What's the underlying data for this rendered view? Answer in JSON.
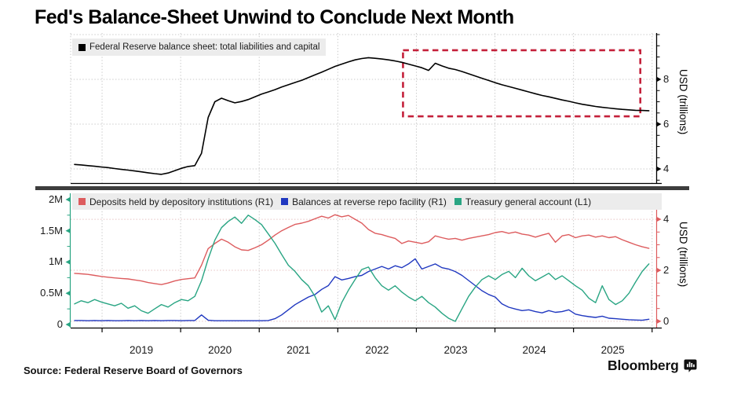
{
  "title": "Fed's Balance-Sheet Unwind to Conclude Next Month",
  "source": "Source: Federal Reserve Board of Governors",
  "brand": {
    "name": "Bloomberg",
    "icon": "bloomberg-terminal-icon"
  },
  "colors": {
    "deposits_red": "#dd5c5e",
    "reverse_repo_blue": "#2038c0",
    "tga_teal": "#29a583",
    "balance_sheet_black": "#000000",
    "annotation_red": "#c4203a",
    "grid_gray": "#c8c8c8",
    "grid_pink": "#e4bfbf",
    "legend_bg": "#ececec",
    "separator": "#3d3d3d"
  },
  "x_axis": {
    "year_labels": [
      "2019",
      "2020",
      "2021",
      "2022",
      "2023",
      "2024",
      "2025"
    ],
    "gridline_years": [
      2019,
      2020,
      2021,
      2022,
      2023,
      2024,
      2025,
      2026
    ],
    "range": [
      2018.6,
      2026.05
    ]
  },
  "chart_data": [
    {
      "type": "line",
      "panel": "top",
      "legend": [
        {
          "label": "Federal Reserve balance sheet: total liabilities and capital",
          "color": "#000000"
        }
      ],
      "y_right": {
        "title": "USD (trillions)",
        "ticks": [
          4,
          6,
          8
        ],
        "gridline_values": [
          4,
          6,
          8,
          10
        ],
        "minor_ticks": [
          3.5,
          4.5,
          5,
          5.5,
          6.5,
          7,
          7.5,
          8.5,
          9,
          9.5,
          10
        ],
        "lim": [
          3.37,
          10.07
        ],
        "color": "#000000"
      },
      "annotation_box": {
        "x": [
          2022.83,
          2025.85
        ],
        "y": [
          6.35,
          9.3
        ],
        "color": "#c4203a",
        "style": "dashed"
      },
      "series": [
        {
          "name": "fed-balance-sheet",
          "color": "#000000",
          "axis": "right",
          "x0": 2018.65,
          "dx": 0.085,
          "y": [
            4.2,
            4.18,
            4.15,
            4.12,
            4.09,
            4.06,
            4.02,
            3.98,
            3.95,
            3.91,
            3.87,
            3.83,
            3.79,
            3.76,
            3.82,
            3.92,
            4.03,
            4.11,
            4.15,
            4.7,
            6.3,
            7.0,
            7.16,
            7.05,
            6.95,
            7.01,
            7.1,
            7.22,
            7.34,
            7.44,
            7.54,
            7.66,
            7.76,
            7.86,
            7.96,
            8.08,
            8.2,
            8.32,
            8.45,
            8.58,
            8.68,
            8.78,
            8.87,
            8.93,
            8.97,
            8.94,
            8.91,
            8.87,
            8.82,
            8.76,
            8.68,
            8.6,
            8.52,
            8.4,
            8.72,
            8.6,
            8.5,
            8.44,
            8.35,
            8.25,
            8.15,
            8.05,
            7.95,
            7.85,
            7.76,
            7.68,
            7.6,
            7.52,
            7.44,
            7.36,
            7.28,
            7.22,
            7.15,
            7.08,
            7.02,
            6.95,
            6.89,
            6.84,
            6.79,
            6.75,
            6.72,
            6.69,
            6.66,
            6.64,
            6.62,
            6.61,
            6.6
          ]
        }
      ]
    },
    {
      "type": "line",
      "panel": "bottom",
      "legend": [
        {
          "label": "Deposits held by depository institutions (R1)",
          "color": "#dd5c5e"
        },
        {
          "label": "Balances at reverse repo facility (R1)",
          "color": "#2038c0"
        },
        {
          "label": "Treasury general account (L1)",
          "color": "#29a583"
        }
      ],
      "y_left": {
        "tick_labels": [
          "0",
          "0.5M",
          "1M",
          "1.5M",
          "2M"
        ],
        "ticks": [
          0,
          0.5,
          1,
          1.5,
          2
        ],
        "minor_ticks": [
          0.25,
          0.75,
          1.25,
          1.75
        ],
        "lim": [
          -0.05,
          2.1
        ],
        "color": "#29a583"
      },
      "y_right": {
        "title": "USD (trillions)",
        "ticks": [
          0,
          2,
          4
        ],
        "gridline_values": [
          0,
          2,
          4
        ],
        "minor_ticks": [
          0.5,
          1,
          1.5,
          2.5,
          3,
          3.5,
          4.5
        ],
        "lim": [
          -0.25,
          5.02
        ],
        "color": "#dd5c5e"
      },
      "series": [
        {
          "name": "deposits-depository-institutions",
          "color": "#dd5c5e",
          "axis": "right",
          "x0": 2018.65,
          "dx": 0.085,
          "y": [
            1.88,
            1.86,
            1.84,
            1.8,
            1.76,
            1.73,
            1.7,
            1.68,
            1.66,
            1.62,
            1.58,
            1.52,
            1.48,
            1.44,
            1.5,
            1.58,
            1.64,
            1.67,
            1.7,
            2.2,
            2.85,
            3.05,
            3.22,
            3.1,
            2.92,
            2.8,
            2.78,
            2.88,
            3.0,
            3.18,
            3.38,
            3.55,
            3.68,
            3.8,
            3.85,
            3.92,
            4.02,
            4.12,
            4.05,
            4.18,
            4.1,
            4.15,
            4.0,
            3.85,
            3.6,
            3.45,
            3.4,
            3.32,
            3.25,
            3.05,
            3.15,
            3.1,
            3.05,
            3.12,
            3.35,
            3.28,
            3.22,
            3.25,
            3.18,
            3.25,
            3.3,
            3.35,
            3.4,
            3.48,
            3.52,
            3.45,
            3.5,
            3.42,
            3.38,
            3.3,
            3.38,
            3.45,
            3.1,
            3.35,
            3.4,
            3.28,
            3.35,
            3.38,
            3.3,
            3.35,
            3.28,
            3.32,
            3.2,
            3.1,
            3.0,
            2.92,
            2.86
          ]
        },
        {
          "name": "reverse-repo-balances",
          "color": "#2038c0",
          "axis": "right",
          "x0": 2018.65,
          "dx": 0.085,
          "y": [
            0.03,
            0.03,
            0.02,
            0.03,
            0.02,
            0.03,
            0.02,
            0.02,
            0.03,
            0.02,
            0.03,
            0.02,
            0.03,
            0.02,
            0.03,
            0.03,
            0.02,
            0.03,
            0.03,
            0.25,
            0.04,
            0.02,
            0.02,
            0.02,
            0.02,
            0.02,
            0.02,
            0.02,
            0.02,
            0.03,
            0.1,
            0.25,
            0.45,
            0.65,
            0.8,
            0.95,
            1.05,
            1.25,
            1.4,
            1.75,
            1.62,
            1.68,
            1.75,
            1.8,
            1.95,
            2.05,
            2.15,
            2.05,
            2.18,
            2.1,
            2.25,
            2.45,
            2.05,
            2.15,
            2.25,
            2.1,
            2.05,
            1.95,
            1.8,
            1.6,
            1.4,
            1.2,
            1.05,
            0.95,
            0.68,
            0.55,
            0.48,
            0.42,
            0.45,
            0.38,
            0.33,
            0.42,
            0.35,
            0.38,
            0.45,
            0.28,
            0.22,
            0.18,
            0.15,
            0.2,
            0.12,
            0.1,
            0.08,
            0.06,
            0.05,
            0.04,
            0.08
          ]
        },
        {
          "name": "treasury-general-account",
          "color": "#29a583",
          "axis": "left",
          "x0": 2018.65,
          "dx": 0.085,
          "y": [
            0.33,
            0.38,
            0.35,
            0.4,
            0.36,
            0.33,
            0.3,
            0.34,
            0.26,
            0.3,
            0.22,
            0.18,
            0.25,
            0.32,
            0.28,
            0.35,
            0.4,
            0.38,
            0.45,
            0.7,
            1.05,
            1.35,
            1.55,
            1.65,
            1.72,
            1.62,
            1.75,
            1.68,
            1.6,
            1.45,
            1.3,
            1.12,
            0.95,
            0.85,
            0.72,
            0.62,
            0.45,
            0.2,
            0.3,
            0.08,
            0.35,
            0.55,
            0.72,
            0.88,
            0.92,
            0.75,
            0.62,
            0.55,
            0.62,
            0.52,
            0.44,
            0.38,
            0.45,
            0.35,
            0.28,
            0.18,
            0.1,
            0.05,
            0.25,
            0.45,
            0.6,
            0.72,
            0.78,
            0.72,
            0.8,
            0.85,
            0.75,
            0.9,
            0.78,
            0.7,
            0.76,
            0.82,
            0.72,
            0.78,
            0.7,
            0.62,
            0.55,
            0.42,
            0.35,
            0.62,
            0.4,
            0.32,
            0.38,
            0.5,
            0.68,
            0.85,
            0.97
          ]
        }
      ]
    }
  ]
}
